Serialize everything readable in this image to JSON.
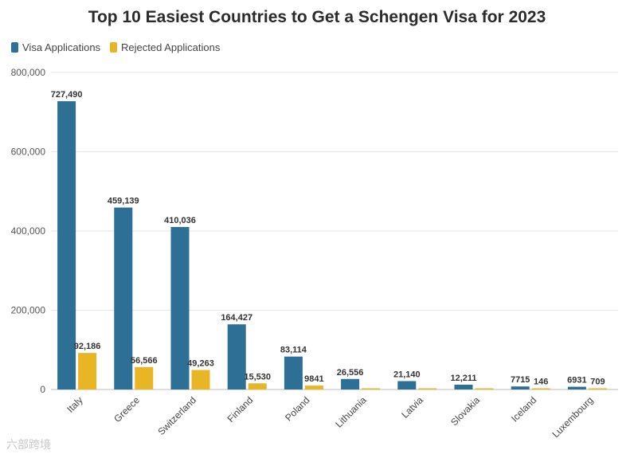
{
  "chart_data": {
    "type": "bar",
    "title": "Top 10 Easiest Countries to Get a Schengen Visa for 2023",
    "categories": [
      "Italy",
      "Greece",
      "Switzerland",
      "Finland",
      "Poland",
      "Lithuania",
      "Latvia",
      "Slovakia",
      "Iceland",
      "Luxembourg"
    ],
    "series": [
      {
        "name": "Visa Applications",
        "color": "#2e6f95",
        "values": [
          727490,
          459139,
          410036,
          164427,
          83114,
          26556,
          21140,
          12211,
          7715,
          6931
        ],
        "labels": [
          "727,490",
          "459,139",
          "410,036",
          "164,427",
          "83,114",
          "26,556",
          "21,140",
          "12,211",
          "7715",
          "6931"
        ]
      },
      {
        "name": "Rejected Applications",
        "color": "#e8b524",
        "values": [
          92186,
          56566,
          49263,
          15530,
          9841,
          null,
          null,
          null,
          146,
          709
        ],
        "labels": [
          "92,186",
          "56,566",
          "49,263",
          "15,530",
          "9841",
          "",
          "",
          "",
          "146",
          "709"
        ]
      }
    ],
    "ylim": [
      0,
      800000
    ],
    "yticks": [
      0,
      200000,
      400000,
      600000,
      800000
    ],
    "ytick_labels": [
      "0",
      "200,000",
      "400,000",
      "600,000",
      "800,000"
    ],
    "grid": true,
    "legend_position": "top-left"
  },
  "watermark": "六部跨境"
}
